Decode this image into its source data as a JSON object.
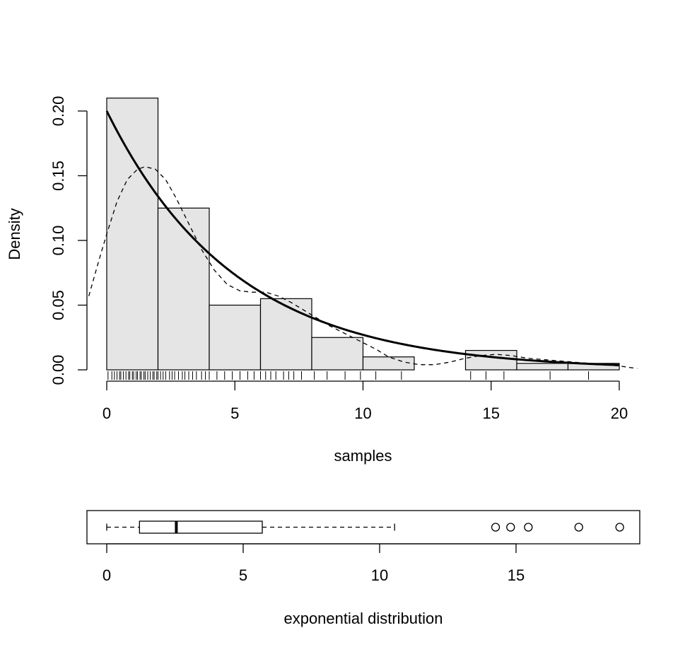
{
  "chart_data": [
    {
      "type": "bar",
      "subtype": "histogram",
      "title": "",
      "xlabel": "samples",
      "ylabel": "Density",
      "xlim": [
        0,
        20
      ],
      "ylim": [
        0,
        0.2
      ],
      "xticks": [
        "0",
        "5",
        "10",
        "15",
        "20"
      ],
      "yticks": [
        "0.00",
        "0.05",
        "0.10",
        "0.15",
        "0.20"
      ],
      "bin_edges": [
        0,
        2,
        4,
        6,
        8,
        10,
        12,
        14,
        16,
        18,
        20
      ],
      "densities": [
        0.21,
        0.125,
        0.05,
        0.055,
        0.025,
        0.01,
        0.0,
        0.015,
        0.005,
        0.005
      ],
      "bar_fill": "#e5e5e5",
      "grid": false,
      "overlays": [
        {
          "kind": "exponential-density",
          "rate": 0.2,
          "style": "solid-thick"
        },
        {
          "kind": "kernel-density",
          "style": "dashed",
          "points": [
            [
              -0.7,
              0.057
            ],
            [
              -0.3,
              0.085
            ],
            [
              0.0,
              0.105
            ],
            [
              0.4,
              0.13
            ],
            [
              0.8,
              0.147
            ],
            [
              1.2,
              0.155
            ],
            [
              1.5,
              0.157
            ],
            [
              1.9,
              0.155
            ],
            [
              2.3,
              0.147
            ],
            [
              2.7,
              0.133
            ],
            [
              3.2,
              0.113
            ],
            [
              3.7,
              0.093
            ],
            [
              4.2,
              0.077
            ],
            [
              4.7,
              0.066
            ],
            [
              5.2,
              0.061
            ],
            [
              5.7,
              0.06
            ],
            [
              6.2,
              0.06
            ],
            [
              6.7,
              0.057
            ],
            [
              7.2,
              0.052
            ],
            [
              7.7,
              0.046
            ],
            [
              8.2,
              0.04
            ],
            [
              8.7,
              0.034
            ],
            [
              9.3,
              0.028
            ],
            [
              9.9,
              0.022
            ],
            [
              10.5,
              0.016
            ],
            [
              11.0,
              0.01
            ],
            [
              11.6,
              0.006
            ],
            [
              12.2,
              0.004
            ],
            [
              12.8,
              0.004
            ],
            [
              13.4,
              0.006
            ],
            [
              14.0,
              0.009
            ],
            [
              14.6,
              0.011
            ],
            [
              15.2,
              0.012
            ],
            [
              15.8,
              0.011
            ],
            [
              16.4,
              0.009
            ],
            [
              17.0,
              0.008
            ],
            [
              17.6,
              0.007
            ],
            [
              18.2,
              0.006
            ],
            [
              18.8,
              0.005
            ],
            [
              19.4,
              0.004
            ],
            [
              20.0,
              0.003
            ],
            [
              20.7,
              0.001
            ]
          ]
        }
      ],
      "rug": [
        0.05,
        0.2,
        0.3,
        0.4,
        0.5,
        0.55,
        0.65,
        0.75,
        0.85,
        0.9,
        1.0,
        1.05,
        1.15,
        1.2,
        1.3,
        1.35,
        1.45,
        1.5,
        1.6,
        1.7,
        1.8,
        1.85,
        1.95,
        2.0,
        2.1,
        2.2,
        2.3,
        2.45,
        2.55,
        2.65,
        2.8,
        2.95,
        3.05,
        3.2,
        3.35,
        3.5,
        3.7,
        3.85,
        4.0,
        4.3,
        4.6,
        4.9,
        5.2,
        5.5,
        5.75,
        6.0,
        6.2,
        6.4,
        6.6,
        6.9,
        7.1,
        7.3,
        7.6,
        8.1,
        8.6,
        9.3,
        9.9,
        10.5,
        11.5,
        14.2,
        14.8,
        15.5,
        17.3,
        18.8
      ]
    },
    {
      "type": "boxplot",
      "orientation": "horizontal",
      "xlabel": "exponential distribution",
      "xlim": [
        0,
        19
      ],
      "xticks": [
        "0",
        "5",
        "10",
        "15"
      ],
      "whisker_low": 0.0,
      "q1": 1.2,
      "median": 2.55,
      "q3": 5.7,
      "whisker_high": 10.55,
      "outliers": [
        14.25,
        14.8,
        15.45,
        17.3,
        18.8
      ]
    }
  ]
}
